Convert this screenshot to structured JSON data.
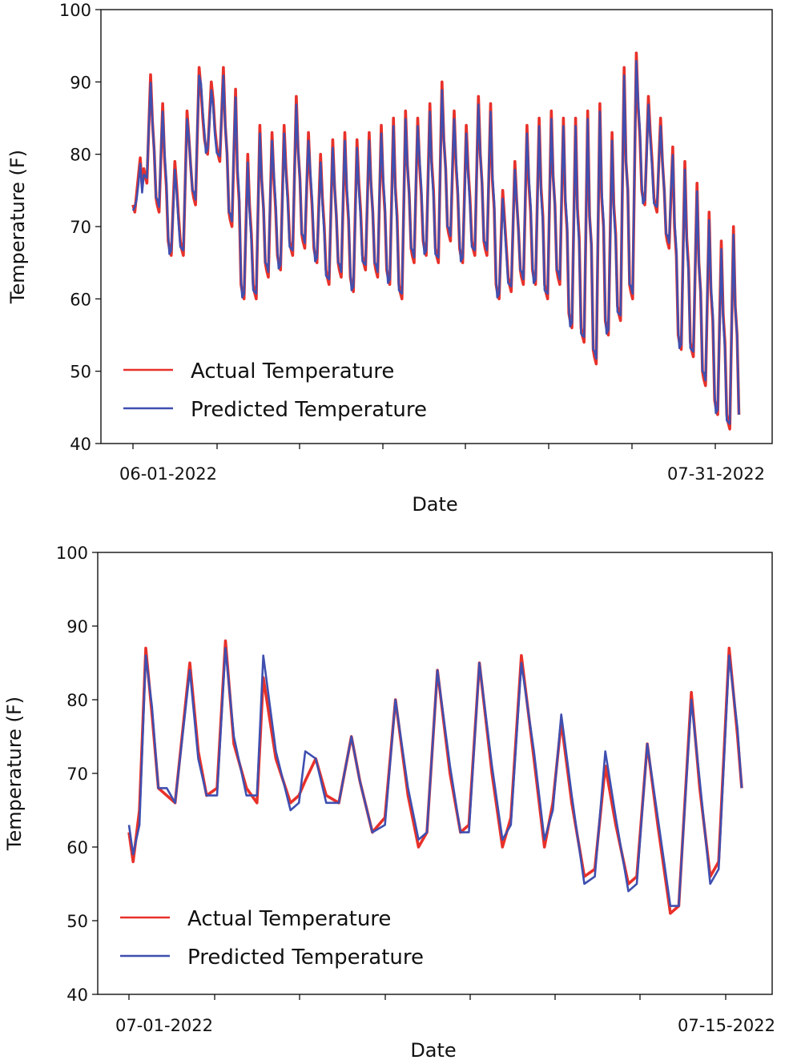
{
  "colors": {
    "actual": "#e8312a",
    "predicted": "#3f4fb0",
    "axis": "#111111"
  },
  "chart_data": [
    {
      "type": "line",
      "title": "",
      "xlabel": "Date",
      "ylabel": "Temperature (F)",
      "ylim": [
        40,
        100
      ],
      "yticks": [
        "40",
        "50",
        "60",
        "70",
        "80",
        "90",
        "100"
      ],
      "xtick_labels": [
        "06-01-2022",
        "07-31-2022"
      ],
      "x_start": "06-01-2022",
      "x_end": "07-31-2022",
      "legend": {
        "position": "lower-left",
        "entries": [
          "Actual Temperature",
          "Predicted Temperature"
        ]
      },
      "actual_day_peaks": [
        77,
        91,
        87,
        79,
        86,
        92,
        90,
        92,
        89,
        80,
        84,
        83,
        84,
        88,
        83,
        80,
        82,
        83,
        82,
        83,
        84,
        85,
        86,
        85,
        87,
        90,
        86,
        84,
        88,
        87,
        75,
        79,
        84,
        85,
        86,
        85,
        85,
        86,
        87,
        83,
        92,
        94,
        88,
        85,
        81,
        79,
        76,
        72,
        68,
        70
      ],
      "actual_day_lows": [
        72,
        76,
        72,
        66,
        66,
        73,
        80,
        79,
        70,
        60,
        60,
        63,
        64,
        66,
        67,
        65,
        62,
        63,
        61,
        64,
        63,
        62,
        60,
        65,
        66,
        65,
        68,
        65,
        66,
        66,
        60,
        61,
        62,
        62,
        60,
        62,
        56,
        54,
        51,
        55,
        57,
        60,
        73,
        72,
        67,
        53,
        52,
        48,
        44,
        42
      ],
      "series": [
        {
          "name": "Actual Temperature",
          "source": "actual_day_peaks/actual_day_lows"
        },
        {
          "name": "Predicted Temperature",
          "source": "actual_day_peaks/actual_day_lows"
        }
      ]
    },
    {
      "type": "line",
      "title": "",
      "xlabel": "Date",
      "ylabel": "Temperature (F)",
      "ylim": [
        40,
        100
      ],
      "yticks": [
        "40",
        "50",
        "60",
        "70",
        "80",
        "90",
        "100"
      ],
      "xtick_labels": [
        "07-01-2022",
        "07-15-2022"
      ],
      "x_start": "07-01-2022",
      "x_end": "07-15-2022",
      "legend": {
        "position": "lower-left",
        "entries": [
          "Actual Temperature",
          "Predicted Temperature"
        ]
      },
      "series": [
        {
          "name": "Actual Temperature",
          "points": [
            [
              0,
              62
            ],
            [
              0.1,
              58
            ],
            [
              0.25,
              65
            ],
            [
              0.4,
              87
            ],
            [
              0.55,
              78
            ],
            [
              0.7,
              68
            ],
            [
              0.9,
              67
            ],
            [
              1.1,
              66
            ],
            [
              1.45,
              85
            ],
            [
              1.65,
              73
            ],
            [
              1.85,
              67
            ],
            [
              2.1,
              68
            ],
            [
              2.3,
              88
            ],
            [
              2.5,
              74
            ],
            [
              2.8,
              68
            ],
            [
              3.05,
              66
            ],
            [
              3.2,
              83
            ],
            [
              3.5,
              72
            ],
            [
              3.85,
              66
            ],
            [
              4.05,
              67
            ],
            [
              4.2,
              69
            ],
            [
              4.45,
              72
            ],
            [
              4.7,
              67
            ],
            [
              5.0,
              66
            ],
            [
              5.3,
              75
            ],
            [
              5.5,
              69
            ],
            [
              5.8,
              62
            ],
            [
              6.1,
              64
            ],
            [
              6.35,
              80
            ],
            [
              6.65,
              67
            ],
            [
              6.9,
              60
            ],
            [
              7.1,
              62
            ],
            [
              7.35,
              84
            ],
            [
              7.65,
              70
            ],
            [
              7.9,
              62
            ],
            [
              8.1,
              63
            ],
            [
              8.35,
              85
            ],
            [
              8.65,
              70
            ],
            [
              8.9,
              60
            ],
            [
              9.1,
              64
            ],
            [
              9.35,
              86
            ],
            [
              9.65,
              72
            ],
            [
              9.9,
              60
            ],
            [
              10.1,
              66
            ],
            [
              10.3,
              77
            ],
            [
              10.55,
              66
            ],
            [
              10.85,
              56
            ],
            [
              11.1,
              57
            ],
            [
              11.35,
              71
            ],
            [
              11.6,
              63
            ],
            [
              11.9,
              55
            ],
            [
              12.1,
              56
            ],
            [
              12.35,
              74
            ],
            [
              12.6,
              63
            ],
            [
              12.9,
              51
            ],
            [
              13.1,
              52
            ],
            [
              13.4,
              81
            ],
            [
              13.6,
              68
            ],
            [
              13.85,
              56
            ],
            [
              14.05,
              58
            ],
            [
              14.3,
              87
            ],
            [
              14.5,
              75
            ],
            [
              14.6,
              68
            ]
          ]
        },
        {
          "name": "Predicted Temperature",
          "points": [
            [
              0,
              63
            ],
            [
              0.1,
              59
            ],
            [
              0.25,
              63
            ],
            [
              0.4,
              86
            ],
            [
              0.55,
              79
            ],
            [
              0.7,
              68
            ],
            [
              0.9,
              68
            ],
            [
              1.1,
              66
            ],
            [
              1.45,
              84
            ],
            [
              1.65,
              72
            ],
            [
              1.85,
              67
            ],
            [
              2.1,
              67
            ],
            [
              2.3,
              87
            ],
            [
              2.5,
              75
            ],
            [
              2.8,
              67
            ],
            [
              3.05,
              67
            ],
            [
              3.2,
              86
            ],
            [
              3.5,
              73
            ],
            [
              3.85,
              65
            ],
            [
              4.05,
              66
            ],
            [
              4.2,
              73
            ],
            [
              4.45,
              72
            ],
            [
              4.7,
              66
            ],
            [
              5.0,
              66
            ],
            [
              5.3,
              75
            ],
            [
              5.5,
              69
            ],
            [
              5.8,
              62
            ],
            [
              6.1,
              63
            ],
            [
              6.35,
              80
            ],
            [
              6.65,
              68
            ],
            [
              6.9,
              61
            ],
            [
              7.1,
              62
            ],
            [
              7.35,
              84
            ],
            [
              7.65,
              71
            ],
            [
              7.9,
              62
            ],
            [
              8.1,
              62
            ],
            [
              8.35,
              85
            ],
            [
              8.65,
              71
            ],
            [
              8.9,
              61
            ],
            [
              9.1,
              63
            ],
            [
              9.35,
              85
            ],
            [
              9.65,
              73
            ],
            [
              9.9,
              61
            ],
            [
              10.1,
              65
            ],
            [
              10.3,
              78
            ],
            [
              10.55,
              67
            ],
            [
              10.85,
              55
            ],
            [
              11.1,
              56
            ],
            [
              11.35,
              73
            ],
            [
              11.6,
              64
            ],
            [
              11.9,
              54
            ],
            [
              12.1,
              55
            ],
            [
              12.35,
              74
            ],
            [
              12.6,
              64
            ],
            [
              12.9,
              52
            ],
            [
              13.1,
              52
            ],
            [
              13.4,
              80
            ],
            [
              13.6,
              69
            ],
            [
              13.85,
              55
            ],
            [
              14.05,
              57
            ],
            [
              14.3,
              86
            ],
            [
              14.5,
              76
            ],
            [
              14.6,
              68
            ]
          ]
        }
      ]
    }
  ]
}
